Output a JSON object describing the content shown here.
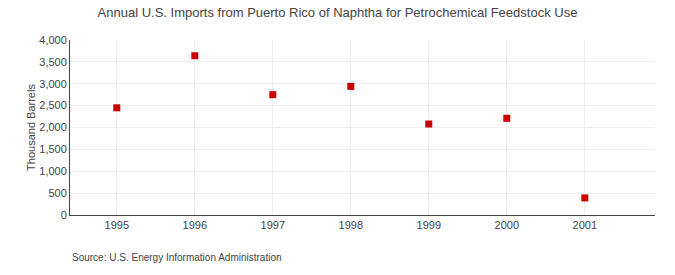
{
  "chart_data": {
    "type": "scatter",
    "title": "Annual U.S. Imports from Puerto Rico of Naphtha for Petrochemical Feedstock Use",
    "y_label": "Thousand Barrels",
    "annotations": [
      "Source: U.S. Energy Information Administration"
    ],
    "x": [
      1995,
      1996,
      1997,
      1998,
      1999,
      2000,
      2001
    ],
    "values": [
      2450,
      3640,
      2750,
      2940,
      2080,
      2210,
      390
    ],
    "xlim": [
      1994.4,
      2001.9
    ],
    "ylim": [
      0,
      4000
    ],
    "xticks": [
      1995,
      1996,
      1997,
      1998,
      1999,
      2000,
      2001
    ],
    "yticks": [
      0,
      500,
      {
        "value": 1000,
        "label": "1,000"
      },
      {
        "value": 1500,
        "label": "1,500"
      },
      {
        "value": 2000,
        "label": "2,000"
      },
      {
        "value": 2500,
        "label": "2,500"
      },
      {
        "value": 3000,
        "label": "3,000"
      },
      {
        "value": 3500,
        "label": "3,500"
      },
      {
        "value": 4000,
        "label": "4,000"
      }
    ],
    "color": "#cc0000",
    "marker": "square",
    "grid": true
  }
}
